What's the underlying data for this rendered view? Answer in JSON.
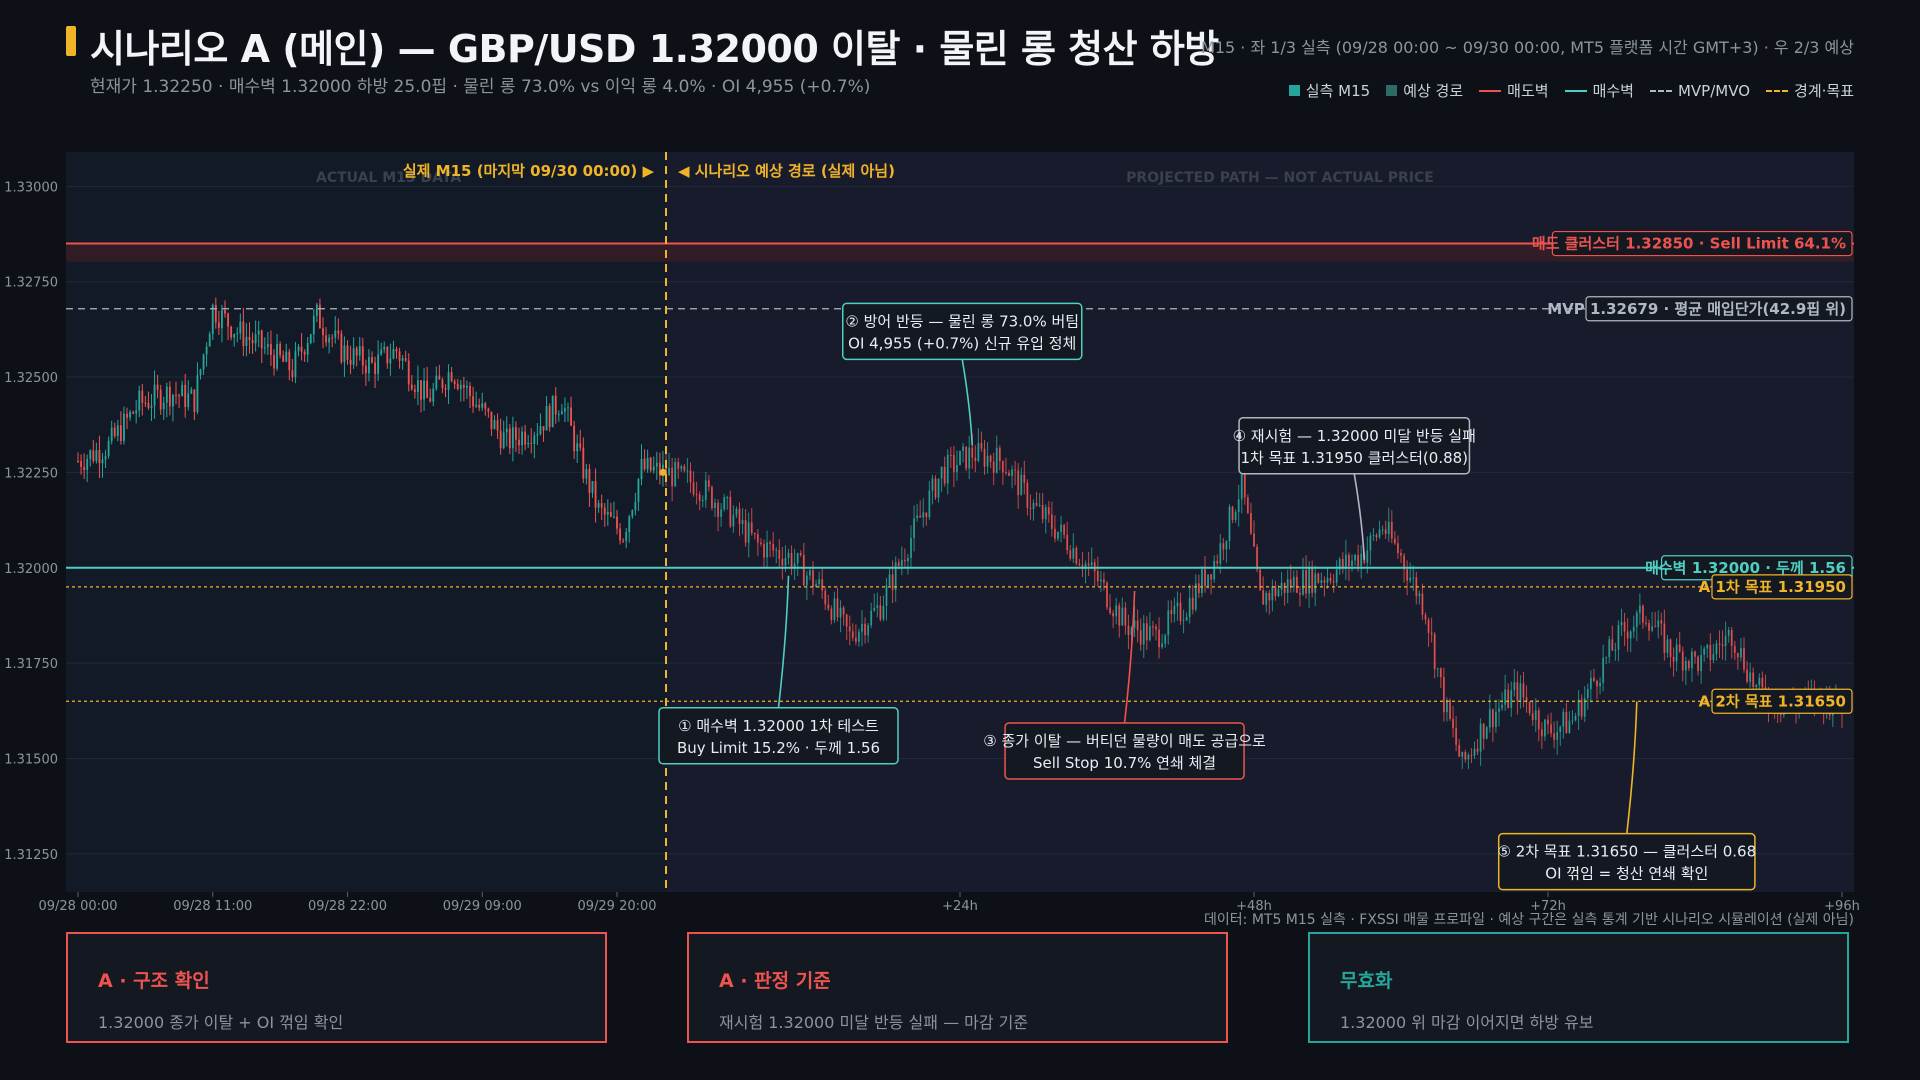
{
  "header": {
    "title": "시나리오 A (메인) — GBP/USD 1.32000 이탈 · 물린 롱 청산 하방",
    "subtitle": "현재가 1.32250 · 매수벽 1.32000 하방 25.0핍 · 물린 롱 73.0% vs 이익 롱 4.0% · OI 4,955 (+0.7%)",
    "meta": "M15 · 좌 1/3 실측 (09/28 00:00 ~ 09/30 00:00, MT5 플랫폼 시간 GMT+3) · 우 2/3 예상"
  },
  "legend": [
    {
      "label": "실측 M15",
      "kind": "box",
      "color": "#26a69a"
    },
    {
      "label": "예상 경로",
      "kind": "box",
      "color": "#2e6b66"
    },
    {
      "label": "매도벽",
      "kind": "line",
      "color": "#ef5350"
    },
    {
      "label": "매수벽",
      "kind": "line",
      "color": "#4dd0c1"
    },
    {
      "label": "MVP/MVO",
      "kind": "dash",
      "color": "#b0b8c4"
    },
    {
      "label": "경계·목표",
      "kind": "dash",
      "color": "#f0b429"
    }
  ],
  "colors": {
    "up": "#26a69a",
    "down": "#ef5350",
    "sell_wall": "#ef5350",
    "buy_wall": "#4dd0c1",
    "mvp": "#b0b8c4",
    "target": "#f0b429",
    "accent": "#f0b429"
  },
  "chart_data": {
    "type": "candlestick",
    "ylim": [
      1.3115,
      1.3309
    ],
    "yticks": [
      "1.33000",
      "1.32750",
      "1.32500",
      "1.32250",
      "1.32000",
      "1.31750",
      "1.31500",
      "1.31250"
    ],
    "ytick_values": [
      1.33,
      1.3275,
      1.325,
      1.3225,
      1.32,
      1.3175,
      1.315,
      1.3125
    ],
    "xticks": [
      {
        "label": "09/28 00:00",
        "bar": 0
      },
      {
        "label": "09/28 11:00",
        "bar": 44
      },
      {
        "label": "09/28 22:00",
        "bar": 88
      },
      {
        "label": "09/29 09:00",
        "bar": 132
      },
      {
        "label": "09/29 20:00",
        "bar": 176
      },
      {
        "label": "+24h",
        "bar": 288
      },
      {
        "label": "+48h",
        "bar": 384
      },
      {
        "label": "+72h",
        "bar": 480
      },
      {
        "label": "+96h",
        "bar": 576
      }
    ],
    "n_bars": 577,
    "split_bar": 192,
    "actual_label": "실제 M15 (마지막 09/30 00:00) ▶",
    "projected_label": "◀ 시나리오 예상 경로 (실제 아님)",
    "actual_watermark": "ACTUAL M15 DATA",
    "projected_watermark": "PROJECTED PATH — NOT ACTUAL PRICE",
    "actual_anchors": [
      [
        0,
        1.3228
      ],
      [
        10,
        1.3232
      ],
      [
        20,
        1.3243
      ],
      [
        30,
        1.3246
      ],
      [
        38,
        1.3244
      ],
      [
        44,
        1.3268
      ],
      [
        52,
        1.3262
      ],
      [
        60,
        1.3258
      ],
      [
        70,
        1.3252
      ],
      [
        78,
        1.3266
      ],
      [
        86,
        1.3257
      ],
      [
        96,
        1.3253
      ],
      [
        104,
        1.3257
      ],
      [
        114,
        1.3244
      ],
      [
        122,
        1.3252
      ],
      [
        130,
        1.3243
      ],
      [
        140,
        1.3233
      ],
      [
        150,
        1.3237
      ],
      [
        158,
        1.3244
      ],
      [
        164,
        1.3228
      ],
      [
        170,
        1.3215
      ],
      [
        178,
        1.3209
      ],
      [
        184,
        1.3226
      ],
      [
        192,
        1.3225
      ]
    ],
    "projected_anchors": [
      [
        192,
        1.3225
      ],
      [
        202,
        1.3222
      ],
      [
        212,
        1.3215
      ],
      [
        222,
        1.3206
      ],
      [
        232,
        1.3203
      ],
      [
        242,
        1.3195
      ],
      [
        252,
        1.3182
      ],
      [
        262,
        1.319
      ],
      [
        272,
        1.3208
      ],
      [
        282,
        1.3225
      ],
      [
        292,
        1.323
      ],
      [
        302,
        1.3228
      ],
      [
        312,
        1.3216
      ],
      [
        322,
        1.3208
      ],
      [
        332,
        1.3198
      ],
      [
        342,
        1.3185
      ],
      [
        352,
        1.3182
      ],
      [
        362,
        1.319
      ],
      [
        372,
        1.3203
      ],
      [
        380,
        1.3222
      ],
      [
        386,
        1.3192
      ],
      [
        396,
        1.3196
      ],
      [
        408,
        1.3198
      ],
      [
        420,
        1.3204
      ],
      [
        426,
        1.3211
      ],
      [
        432,
        1.3203
      ],
      [
        440,
        1.3189
      ],
      [
        446,
        1.3165
      ],
      [
        452,
        1.3148
      ],
      [
        460,
        1.316
      ],
      [
        470,
        1.3168
      ],
      [
        480,
        1.3157
      ],
      [
        488,
        1.316
      ],
      [
        496,
        1.3172
      ],
      [
        504,
        1.3183
      ],
      [
        512,
        1.3188
      ],
      [
        520,
        1.3178
      ],
      [
        530,
        1.3175
      ],
      [
        540,
        1.3183
      ],
      [
        548,
        1.3168
      ],
      [
        558,
        1.3163
      ],
      [
        568,
        1.3166
      ],
      [
        576,
        1.3164
      ]
    ],
    "levels": [
      {
        "name": "sell_wall",
        "value": 1.3285,
        "label": "매도 클러스터 1.32850 · Sell Limit 64.1%",
        "style": "solid",
        "color": "#ef5350"
      },
      {
        "name": "mvp",
        "value": 1.32679,
        "label": "MVP 1.32679 · 평균 매입단가(42.9핍 위)",
        "style": "dash",
        "color": "#b0b8c4"
      },
      {
        "name": "buy_wall",
        "value": 1.32,
        "label": "매수벽 1.32000 · 두께 1.56",
        "style": "solid",
        "color": "#4dd0c1"
      },
      {
        "name": "target1",
        "value": 1.3195,
        "label": "A 1차 목표 1.31950",
        "style": "dot",
        "color": "#f0b429"
      },
      {
        "name": "target2",
        "value": 1.3165,
        "label": "A 2차 목표 1.31650",
        "style": "dot",
        "color": "#f0b429"
      }
    ],
    "annotations": [
      {
        "id": 1,
        "lines": [
          "① 매수벽 1.32000 1차 테스트",
          "Buy Limit 15.2% · 두께 1.56"
        ],
        "color": "#4dd0c1",
        "bar": 232,
        "price": 1.32,
        "placement": "below"
      },
      {
        "id": 2,
        "lines": [
          "② 방어 반등 — 물린 롱 73.0% 버팀",
          "OI 4,955 (+0.7%) 신규 유입 정체"
        ],
        "color": "#4dd0c1",
        "bar": 292,
        "price": 1.323,
        "placement": "above"
      },
      {
        "id": 3,
        "lines": [
          "③ 종가 이탈 — 버티던 물량이 매도 공급으로",
          "Sell Stop 10.7% 연쇄 체결"
        ],
        "color": "#ef5350",
        "bar": 345,
        "price": 1.3196,
        "placement": "below"
      },
      {
        "id": 4,
        "lines": [
          "④ 재시험 — 1.32000 미달 반등 실패",
          "1차 목표 1.31950 클러스터(0.88)"
        ],
        "color": "#b0b8c4",
        "bar": 420,
        "price": 1.32,
        "placement": "above"
      },
      {
        "id": 5,
        "lines": [
          "⑤ 2차 목표 1.31650 — 클러스터 0.68",
          "OI 꺾임 = 청산 연쇄 확인"
        ],
        "color": "#f0b429",
        "bar": 509,
        "price": 1.3167,
        "placement": "below"
      }
    ]
  },
  "source_note": "데이터: MT5 M15 실측 · FXSSI 매물 프로파일 · 예상 구간은 실측 통계 기반 시나리오 시뮬레이션 (실제 아님)",
  "cards": [
    {
      "title": "A · 구조 확인",
      "text": "1.32000 종가 이탈 + OI 꺾임 확인",
      "color": "#ef5350"
    },
    {
      "title": "A · 판정 기준",
      "text": "재시험 1.32000 미달 반등 실패 — 마감 기준",
      "color": "#ef5350"
    },
    {
      "title": "무효화",
      "text": "1.32000 위 마감 이어지면 하방 유보",
      "color": "#26a69a"
    }
  ]
}
